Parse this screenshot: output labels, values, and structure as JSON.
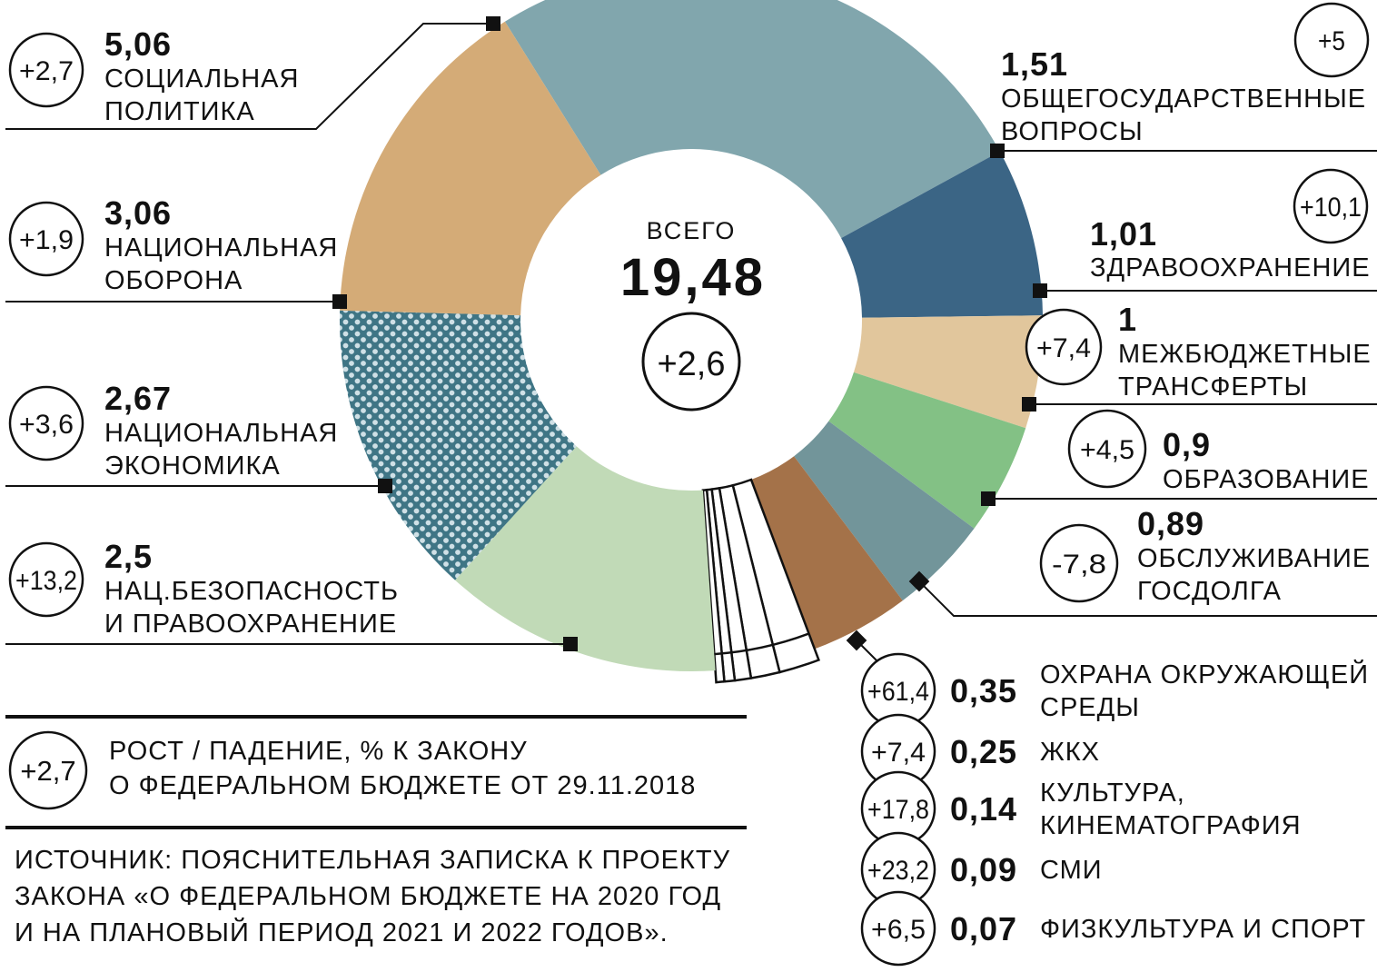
{
  "chart_data": {
    "type": "pie",
    "variant": "donut",
    "center": {
      "label": "ВСЕГО",
      "total": "19,48",
      "change": "+2,6"
    },
    "slices": [
      {
        "id": "social",
        "value": "5,06",
        "label_lines": [
          "СОЦИАЛЬНАЯ",
          "ПОЛИТИКА"
        ],
        "change": "+2,7",
        "color": "#81a6ad"
      },
      {
        "id": "general",
        "value": "1,51",
        "label_lines": [
          "ОБЩЕГОСУДАРСТВЕННЫЕ",
          "ВОПРОСЫ"
        ],
        "change": "+5",
        "color": "#3b6585"
      },
      {
        "id": "health",
        "value": "1,01",
        "label_lines": [
          "ЗДРАВООХРАНЕНИЕ"
        ],
        "change": "+10,1",
        "color": "#e1c69c"
      },
      {
        "id": "transfers",
        "value": "1",
        "label_lines": [
          "МЕЖБЮДЖЕТНЫЕ",
          "ТРАНСФЕРТЫ"
        ],
        "change": "+7,4",
        "color": "#83c185"
      },
      {
        "id": "education",
        "value": "0,9",
        "label_lines": [
          "ОБРАЗОВАНИЕ"
        ],
        "change": "+4,5",
        "color": "#72959a"
      },
      {
        "id": "debt",
        "value": "0,89",
        "label_lines": [
          "ОБСЛУЖИВАНИЕ",
          "ГОСДОЛГА"
        ],
        "change": "-7,8",
        "color": "#a47249"
      },
      {
        "id": "environment",
        "value": "0,35",
        "label_lines": [
          "ОХРАНА ОКРУЖАЮЩЕЙ",
          "СРЕДЫ"
        ],
        "change": "+61,4",
        "color": "#ffffff"
      },
      {
        "id": "housing",
        "value": "0,25",
        "label_lines": [
          "ЖКХ"
        ],
        "change": "+7,4",
        "color": "#ffffff"
      },
      {
        "id": "culture",
        "value": "0,14",
        "label_lines": [
          "КУЛЬТУРА,",
          "КИНЕМАТОГРАФИЯ"
        ],
        "change": "+17,8",
        "color": "#ffffff"
      },
      {
        "id": "media",
        "value": "0,09",
        "label_lines": [
          "СМИ"
        ],
        "change": "+23,2",
        "color": "#ffffff"
      },
      {
        "id": "sport",
        "value": "0,07",
        "label_lines": [
          "ФИЗКУЛЬТУРА И СПОРТ"
        ],
        "change": "+6,5",
        "color": "#ffffff"
      },
      {
        "id": "security",
        "value": "2,5",
        "label_lines": [
          "НАЦ.БЕЗОПАСНОСТЬ",
          "И ПРАВООХРАНЕНИЕ"
        ],
        "change": "+13,2",
        "color": "#c1dab7"
      },
      {
        "id": "economy",
        "value": "2,67",
        "label_lines": [
          "НАЦИОНАЛЬНАЯ",
          "ЭКОНОМИКА"
        ],
        "change": "+3,6",
        "color": "#3f7585",
        "pattern": "dotted"
      },
      {
        "id": "defense",
        "value": "3,06",
        "label_lines": [
          "НАЦИОНАЛЬНАЯ",
          "ОБОРОНА"
        ],
        "change": "+1,9",
        "color": "#d4ab77"
      }
    ],
    "legend": {
      "sample_change": "+2,7",
      "lines": [
        "РОСТ / ПАДЕНИЕ, % К ЗАКОНУ",
        "О ФЕДЕРАЛЬНОМ БЮДЖЕТЕ ОТ 29.11.2018"
      ]
    },
    "source_lines": [
      "ИСТОЧНИК: ПОЯСНИТЕЛЬНАЯ ЗАПИСКА К ПРОЕКТУ",
      "ЗАКОНА «О ФЕДЕРАЛЬНОМ БЮДЖЕТЕ НА 2020 ГОД",
      "И НА ПЛАНОВЫЙ ПЕРИОД 2021 И 2022 ГОДОВ»."
    ]
  }
}
